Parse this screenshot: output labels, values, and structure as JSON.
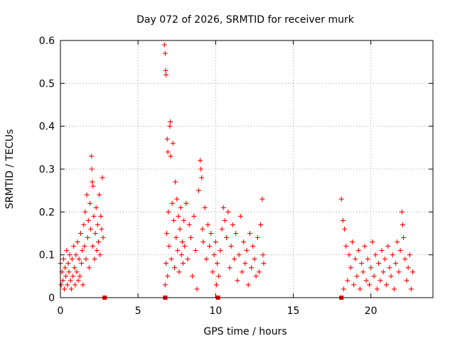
{
  "chart_data": {
    "type": "scatter",
    "title": "Day 072 of 2026, SRMTID for receiver murk",
    "xlabel": "GPS time / hours",
    "ylabel": "SRMTID / TECUs",
    "xlim": [
      0,
      24
    ],
    "ylim": [
      0,
      0.6
    ],
    "xticks": [
      0,
      5,
      10,
      15,
      20
    ],
    "yticks": [
      0,
      0.1,
      0.2,
      0.3,
      0.4,
      0.5,
      0.6
    ],
    "ytick_labels": [
      "0",
      "0.1",
      "0.2",
      "0.3",
      "0.4",
      "0.5",
      "0.6"
    ],
    "grid": true,
    "marker": "+",
    "color": "#ff0000",
    "series": [
      {
        "name": "SRMTID",
        "points": [
          [
            0.0,
            0.08
          ],
          [
            0.05,
            0.03
          ],
          [
            0.1,
            0.06
          ],
          [
            0.15,
            0.04
          ],
          [
            0.2,
            0.09
          ],
          [
            0.25,
            0.02
          ],
          [
            0.3,
            0.07
          ],
          [
            0.35,
            0.05
          ],
          [
            0.4,
            0.11
          ],
          [
            0.45,
            0.03
          ],
          [
            0.5,
            0.08
          ],
          [
            0.55,
            0.06
          ],
          [
            0.6,
            0.1
          ],
          [
            0.65,
            0.04
          ],
          [
            0.7,
            0.02
          ],
          [
            0.75,
            0.09
          ],
          [
            0.8,
            0.05
          ],
          [
            0.85,
            0.12
          ],
          [
            0.9,
            0.07
          ],
          [
            0.95,
            0.03
          ],
          [
            1.0,
            0.1
          ],
          [
            1.05,
            0.06
          ],
          [
            1.1,
            0.13
          ],
          [
            1.15,
            0.04
          ],
          [
            1.2,
            0.09
          ],
          [
            1.25,
            0.05
          ],
          [
            1.3,
            0.15
          ],
          [
            1.35,
            0.08
          ],
          [
            1.4,
            0.11
          ],
          [
            1.45,
            0.03
          ],
          [
            1.5,
            0.17
          ],
          [
            1.55,
            0.12
          ],
          [
            1.6,
            0.2
          ],
          [
            1.65,
            0.09
          ],
          [
            1.7,
            0.24
          ],
          [
            1.75,
            0.14
          ],
          [
            1.8,
            0.18
          ],
          [
            1.85,
            0.07
          ],
          [
            1.9,
            0.22
          ],
          [
            1.95,
            0.16
          ],
          [
            2.0,
            0.33
          ],
          [
            2.02,
            0.3
          ],
          [
            2.05,
            0.27
          ],
          [
            2.08,
            0.12
          ],
          [
            2.1,
            0.26
          ],
          [
            2.15,
            0.19
          ],
          [
            2.2,
            0.09
          ],
          [
            2.25,
            0.15
          ],
          [
            2.3,
            0.21
          ],
          [
            2.35,
            0.11
          ],
          [
            2.4,
            0.17
          ],
          [
            2.45,
            0.13
          ],
          [
            2.5,
            0.24
          ],
          [
            2.55,
            0.1
          ],
          [
            2.6,
            0.19
          ],
          [
            2.65,
            0.16
          ],
          [
            2.7,
            0.28
          ],
          [
            2.75,
            0.14
          ],
          [
            6.7,
            0.59
          ],
          [
            6.75,
            0.57
          ],
          [
            6.78,
            0.53
          ],
          [
            6.8,
            0.52
          ],
          [
            6.75,
            0.03
          ],
          [
            6.8,
            0.08
          ],
          [
            6.85,
            0.15
          ],
          [
            6.88,
            0.37
          ],
          [
            6.9,
            0.05
          ],
          [
            6.92,
            0.34
          ],
          [
            6.95,
            0.2
          ],
          [
            7.0,
            0.12
          ],
          [
            7.05,
            0.4
          ],
          [
            7.08,
            0.41
          ],
          [
            7.1,
            0.33
          ],
          [
            7.15,
            0.09
          ],
          [
            7.2,
            0.22
          ],
          [
            7.25,
            0.36
          ],
          [
            7.3,
            0.18
          ],
          [
            7.35,
            0.07
          ],
          [
            7.4,
            0.27
          ],
          [
            7.45,
            0.14
          ],
          [
            7.5,
            0.23
          ],
          [
            7.55,
            0.11
          ],
          [
            7.6,
            0.19
          ],
          [
            7.65,
            0.06
          ],
          [
            7.7,
            0.16
          ],
          [
            7.75,
            0.21
          ],
          [
            7.8,
            0.1
          ],
          [
            7.85,
            0.13
          ],
          [
            7.9,
            0.08
          ],
          [
            7.95,
            0.18
          ],
          [
            8.0,
            0.12
          ],
          [
            8.1,
            0.22
          ],
          [
            8.2,
            0.09
          ],
          [
            8.3,
            0.17
          ],
          [
            8.4,
            0.14
          ],
          [
            8.5,
            0.05
          ],
          [
            8.6,
            0.19
          ],
          [
            8.7,
            0.11
          ],
          [
            8.8,
            0.02
          ],
          [
            8.9,
            0.25
          ],
          [
            9.0,
            0.32
          ],
          [
            9.05,
            0.3
          ],
          [
            9.1,
            0.28
          ],
          [
            9.15,
            0.16
          ],
          [
            9.2,
            0.13
          ],
          [
            9.3,
            0.21
          ],
          [
            9.4,
            0.09
          ],
          [
            9.5,
            0.17
          ],
          [
            9.6,
            0.12
          ],
          [
            9.7,
            0.15
          ],
          [
            9.8,
            0.06
          ],
          [
            9.9,
            0.1
          ],
          [
            10.0,
            0.13
          ],
          [
            10.05,
            0.03
          ],
          [
            10.1,
            0.08
          ],
          [
            10.2,
            0.05
          ],
          [
            10.3,
            0.11
          ],
          [
            10.4,
            0.16
          ],
          [
            10.5,
            0.21
          ],
          [
            10.6,
            0.18
          ],
          [
            10.7,
            0.14
          ],
          [
            10.8,
            0.2
          ],
          [
            10.9,
            0.07
          ],
          [
            11.0,
            0.12
          ],
          [
            11.1,
            0.17
          ],
          [
            11.2,
            0.09
          ],
          [
            11.3,
            0.15
          ],
          [
            11.4,
            0.04
          ],
          [
            11.5,
            0.1
          ],
          [
            11.6,
            0.19
          ],
          [
            11.7,
            0.06
          ],
          [
            11.8,
            0.13
          ],
          [
            11.9,
            0.08
          ],
          [
            12.0,
            0.11
          ],
          [
            12.1,
            0.03
          ],
          [
            12.2,
            0.15
          ],
          [
            12.3,
            0.07
          ],
          [
            12.4,
            0.12
          ],
          [
            12.5,
            0.09
          ],
          [
            12.6,
            0.05
          ],
          [
            12.7,
            0.14
          ],
          [
            12.8,
            0.06
          ],
          [
            12.9,
            0.17
          ],
          [
            13.0,
            0.23
          ],
          [
            13.05,
            0.1
          ],
          [
            13.1,
            0.08
          ],
          [
            18.1,
            0.23
          ],
          [
            18.2,
            0.18
          ],
          [
            18.25,
            0.02
          ],
          [
            18.3,
            0.16
          ],
          [
            18.4,
            0.12
          ],
          [
            18.5,
            0.04
          ],
          [
            18.6,
            0.1
          ],
          [
            18.7,
            0.07
          ],
          [
            18.8,
            0.13
          ],
          [
            18.9,
            0.03
          ],
          [
            19.0,
            0.09
          ],
          [
            19.1,
            0.05
          ],
          [
            19.2,
            0.11
          ],
          [
            19.3,
            0.02
          ],
          [
            19.4,
            0.08
          ],
          [
            19.5,
            0.06
          ],
          [
            19.6,
            0.12
          ],
          [
            19.7,
            0.04
          ],
          [
            19.8,
            0.09
          ],
          [
            19.9,
            0.03
          ],
          [
            20.0,
            0.07
          ],
          [
            20.1,
            0.13
          ],
          [
            20.2,
            0.05
          ],
          [
            20.3,
            0.1
          ],
          [
            20.4,
            0.02
          ],
          [
            20.5,
            0.08
          ],
          [
            20.6,
            0.04
          ],
          [
            20.7,
            0.11
          ],
          [
            20.8,
            0.06
          ],
          [
            20.9,
            0.09
          ],
          [
            21.0,
            0.03
          ],
          [
            21.1,
            0.12
          ],
          [
            21.2,
            0.07
          ],
          [
            21.3,
            0.05
          ],
          [
            21.4,
            0.1
          ],
          [
            21.5,
            0.02
          ],
          [
            21.6,
            0.08
          ],
          [
            21.7,
            0.13
          ],
          [
            21.8,
            0.06
          ],
          [
            21.9,
            0.11
          ],
          [
            22.0,
            0.2
          ],
          [
            22.05,
            0.17
          ],
          [
            22.1,
            0.14
          ],
          [
            22.2,
            0.09
          ],
          [
            22.3,
            0.04
          ],
          [
            22.4,
            0.07
          ],
          [
            22.5,
            0.1
          ],
          [
            22.6,
            0.02
          ],
          [
            22.7,
            0.06
          ]
        ]
      }
    ],
    "gap_markers": {
      "style": "filled-square",
      "x": [
        2.85,
        6.75,
        10.15,
        18.1
      ]
    }
  }
}
